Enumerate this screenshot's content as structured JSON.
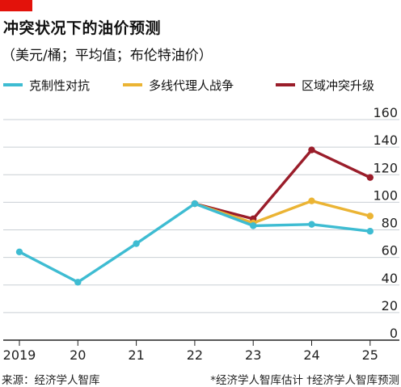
{
  "header": {
    "title": "冲突状况下的油价预测",
    "subtitle": "（美元/桶；平均值；布伦特油价）",
    "accent_color": "#e3120b"
  },
  "legend": {
    "items": [
      {
        "label": "克制性对抗",
        "color": "#3ebcd2"
      },
      {
        "label": "多线代理人战争",
        "color": "#ebb434"
      },
      {
        "label": "区域冲突升级",
        "color": "#9a1d2a"
      }
    ]
  },
  "footer": {
    "source": "来源：经济学人智库",
    "notes": "*经济学人智库估计 †经济学人智库预测"
  },
  "chart_data": {
    "type": "line",
    "x": [
      "2019",
      "20",
      "21",
      "22",
      "23",
      "24",
      "25"
    ],
    "yticks": [
      "0",
      "20",
      "40",
      "60",
      "80",
      "100",
      "120",
      "140",
      "160"
    ],
    "ylim": [
      0,
      160
    ],
    "y_axis_side": "right",
    "grid": true,
    "legend_position": "top",
    "series": [
      {
        "name": "克制性对抗",
        "color": "#3ebcd2",
        "points": [
          [
            0,
            64
          ],
          [
            1,
            42
          ],
          [
            2,
            70
          ],
          [
            3,
            99
          ],
          [
            4,
            83
          ],
          [
            5,
            84
          ],
          [
            6,
            79
          ]
        ]
      },
      {
        "name": "多线代理人战争",
        "color": "#ebb434",
        "points": [
          [
            3,
            99
          ],
          [
            4,
            85
          ],
          [
            5,
            101
          ],
          [
            6,
            90
          ]
        ]
      },
      {
        "name": "区域冲突升级",
        "color": "#9a1d2a",
        "points": [
          [
            3,
            99
          ],
          [
            4,
            88
          ],
          [
            5,
            138
          ],
          [
            6,
            118
          ]
        ]
      }
    ]
  }
}
